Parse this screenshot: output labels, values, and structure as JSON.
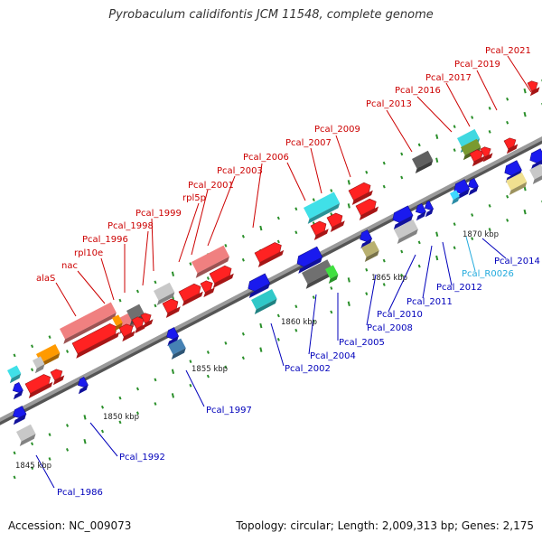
{
  "title": "Pyrobaculum calidifontis JCM 11548, complete genome",
  "footer": {
    "accession": "Accession: NC_009073",
    "topology": "Topology: circular; Length: 2,009,313 bp; Genes: 2,175"
  },
  "colors": {
    "backbone": "#8a8a8a",
    "forward_label": "#cc0000",
    "reverse_label": "#0000bb",
    "rna_label": "#22aadd",
    "tick": "#2a8f2a",
    "forward_gene": "#ff0000",
    "reverse_gene": "#1a1aee"
  },
  "kbp_labels": [
    "1845 kbp",
    "1850 kbp",
    "1855 kbp",
    "1860 kbp",
    "1865 kbp",
    "1870 kbp"
  ],
  "forward_labels": [
    "alaS",
    "nac",
    "rpl10e",
    "Pcal_1996",
    "Pcal_1998",
    "Pcal_1999",
    "rpl5p",
    "Pcal_2001",
    "Pcal_2003",
    "Pcal_2006",
    "Pcal_2007",
    "Pcal_2009",
    "Pcal_2013",
    "Pcal_2016",
    "Pcal_2017",
    "Pcal_2019",
    "Pcal_2021"
  ],
  "reverse_labels": [
    "Pcal_1986",
    "Pcal_1992",
    "Pcal_1997",
    "Pcal_2002",
    "Pcal_2004",
    "Pcal_2005",
    "Pcal_2008",
    "Pcal_2010",
    "Pcal_2011",
    "Pcal_2012",
    "Pcal_R0026",
    "Pcal_2014"
  ]
}
